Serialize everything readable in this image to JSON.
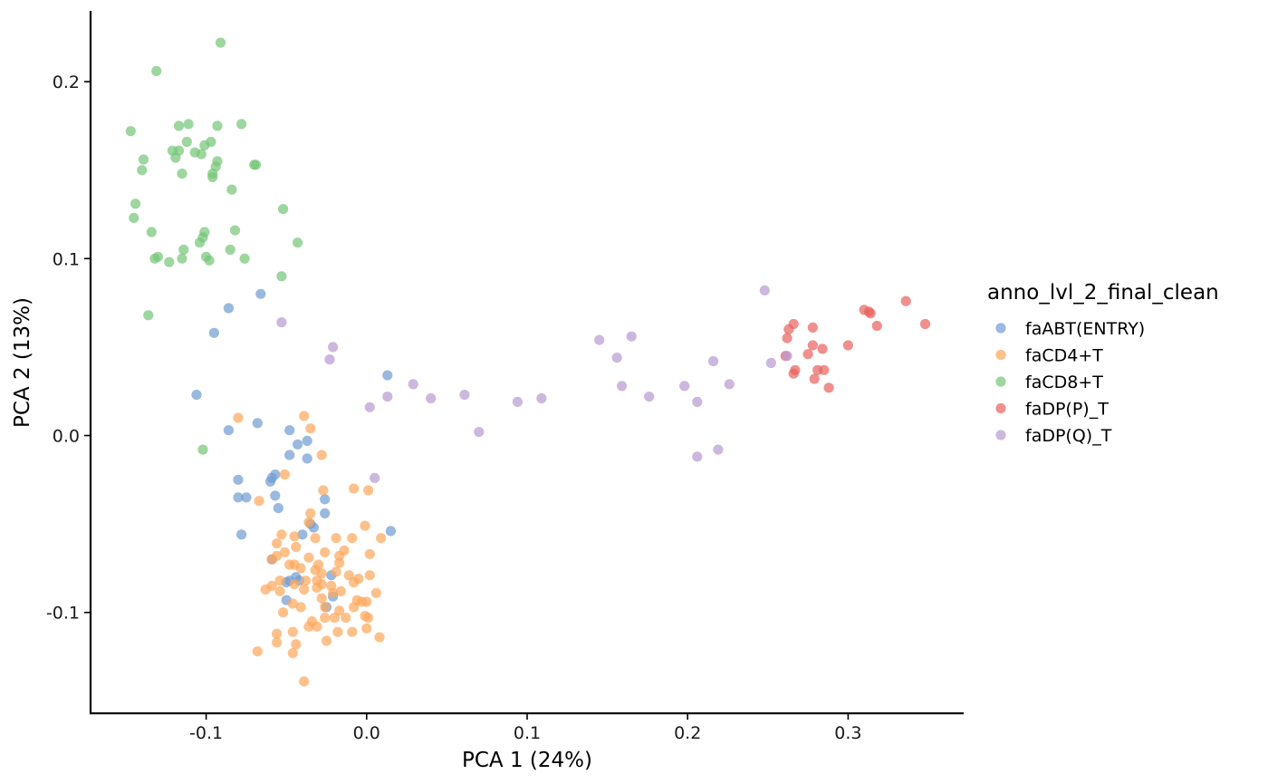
{
  "chart_data": {
    "type": "scatter",
    "xlabel": "PCA 1 (24%)",
    "ylabel": "PCA 2 (13%)",
    "xlim": [
      -0.172,
      0.372
    ],
    "ylim": [
      -0.157,
      0.24
    ],
    "x_ticks": [
      -0.1,
      0.0,
      0.1,
      0.2,
      0.3
    ],
    "x_tick_labels": [
      "-0.1",
      "0.0",
      "0.1",
      "0.2",
      "0.3"
    ],
    "y_ticks": [
      -0.1,
      0.0,
      0.1,
      0.2
    ],
    "y_tick_labels": [
      "-0.1",
      "0.0",
      "0.1",
      "0.2"
    ],
    "grid": false,
    "legend_title": "anno_lvl_2_final_clean",
    "legend_position": "right",
    "series": [
      {
        "name": "faABT(ENTRY)",
        "color": "#6F9BD1",
        "points": [
          [
            -0.066,
            0.08
          ],
          [
            -0.086,
            0.072
          ],
          [
            -0.095,
            0.058
          ],
          [
            -0.106,
            0.023
          ],
          [
            0.013,
            0.034
          ],
          [
            -0.068,
            0.007
          ],
          [
            -0.086,
            0.003
          ],
          [
            -0.048,
            0.003
          ],
          [
            -0.037,
            -0.003
          ],
          [
            -0.043,
            -0.005
          ],
          [
            -0.048,
            -0.011
          ],
          [
            -0.037,
            -0.013
          ],
          [
            -0.08,
            -0.025
          ],
          [
            -0.057,
            -0.022
          ],
          [
            -0.059,
            -0.024
          ],
          [
            -0.06,
            -0.026
          ],
          [
            -0.08,
            -0.035
          ],
          [
            -0.075,
            -0.035
          ],
          [
            -0.057,
            -0.034
          ],
          [
            -0.055,
            -0.041
          ],
          [
            -0.026,
            -0.036
          ],
          [
            -0.026,
            -0.044
          ],
          [
            -0.035,
            -0.05
          ],
          [
            -0.033,
            -0.052
          ],
          [
            -0.078,
            -0.056
          ],
          [
            -0.04,
            -0.056
          ],
          [
            0.015,
            -0.054
          ],
          [
            -0.059,
            -0.07
          ],
          [
            -0.022,
            -0.079
          ],
          [
            -0.048,
            -0.082
          ],
          [
            -0.044,
            -0.08
          ],
          [
            -0.042,
            -0.082
          ],
          [
            -0.05,
            -0.083
          ],
          [
            -0.021,
            -0.091
          ],
          [
            -0.05,
            -0.093
          ],
          [
            -0.025,
            -0.097
          ]
        ]
      },
      {
        "name": "faCD4+T",
        "color": "#FDA65A",
        "points": [
          [
            -0.08,
            0.01
          ],
          [
            -0.039,
            0.011
          ],
          [
            -0.035,
            0.004
          ],
          [
            -0.028,
            -0.011
          ],
          [
            -0.051,
            -0.022
          ],
          [
            -0.067,
            -0.037
          ],
          [
            -0.027,
            -0.031
          ],
          [
            -0.008,
            -0.03
          ],
          [
            0.001,
            -0.031
          ],
          [
            -0.035,
            -0.044
          ],
          [
            -0.036,
            -0.049
          ],
          [
            -0.001,
            -0.051
          ],
          [
            -0.053,
            -0.056
          ],
          [
            -0.045,
            -0.057
          ],
          [
            -0.019,
            -0.058
          ],
          [
            -0.009,
            -0.058
          ],
          [
            0.009,
            -0.058
          ],
          [
            -0.032,
            -0.058
          ],
          [
            -0.056,
            -0.061
          ],
          [
            -0.044,
            -0.063
          ],
          [
            -0.026,
            -0.066
          ],
          [
            -0.014,
            -0.065
          ],
          [
            -0.051,
            -0.066
          ],
          [
            -0.056,
            -0.068
          ],
          [
            -0.017,
            -0.068
          ],
          [
            0.002,
            -0.067
          ],
          [
            -0.036,
            -0.069
          ],
          [
            -0.017,
            -0.072
          ],
          [
            -0.045,
            -0.073
          ],
          [
            -0.048,
            -0.073
          ],
          [
            -0.059,
            -0.07
          ],
          [
            -0.03,
            -0.073
          ],
          [
            -0.041,
            -0.075
          ],
          [
            -0.032,
            -0.076
          ],
          [
            -0.028,
            -0.078
          ],
          [
            -0.019,
            -0.077
          ],
          [
            -0.011,
            -0.079
          ],
          [
            0.002,
            -0.079
          ],
          [
            -0.005,
            -0.081
          ],
          [
            -0.031,
            -0.082
          ],
          [
            -0.038,
            -0.082
          ],
          [
            -0.054,
            -0.082
          ],
          [
            -0.045,
            -0.084
          ],
          [
            -0.059,
            -0.085
          ],
          [
            -0.054,
            -0.088
          ],
          [
            -0.063,
            -0.087
          ],
          [
            -0.039,
            -0.087
          ],
          [
            -0.028,
            -0.084
          ],
          [
            -0.022,
            -0.085
          ],
          [
            -0.031,
            -0.086
          ],
          [
            -0.016,
            -0.088
          ],
          [
            -0.008,
            -0.083
          ],
          [
            0.006,
            -0.089
          ],
          [
            -0.028,
            -0.092
          ],
          [
            -0.046,
            -0.095
          ],
          [
            -0.021,
            -0.089
          ],
          [
            -0.003,
            -0.094
          ],
          [
            0.0,
            -0.094
          ],
          [
            -0.006,
            -0.093
          ],
          [
            -0.052,
            -0.1
          ],
          [
            -0.041,
            -0.097
          ],
          [
            -0.017,
            -0.099
          ],
          [
            -0.008,
            -0.097
          ],
          [
            -0.026,
            -0.097
          ],
          [
            -0.034,
            -0.105
          ],
          [
            -0.02,
            -0.103
          ],
          [
            -0.026,
            -0.103
          ],
          [
            -0.001,
            -0.102
          ],
          [
            -0.013,
            -0.103
          ],
          [
            0.001,
            -0.103
          ],
          [
            -0.036,
            -0.108
          ],
          [
            -0.031,
            -0.108
          ],
          [
            -0.056,
            -0.112
          ],
          [
            -0.046,
            -0.111
          ],
          [
            -0.009,
            -0.111
          ],
          [
            0.0,
            -0.109
          ],
          [
            -0.018,
            -0.111
          ],
          [
            0.008,
            -0.114
          ],
          [
            -0.056,
            -0.117
          ],
          [
            -0.025,
            -0.116
          ],
          [
            -0.044,
            -0.118
          ],
          [
            -0.046,
            -0.123
          ],
          [
            -0.068,
            -0.122
          ],
          [
            -0.039,
            -0.139
          ]
        ]
      },
      {
        "name": "faCD8+T",
        "color": "#74C476",
        "points": [
          [
            -0.091,
            0.222
          ],
          [
            -0.131,
            0.206
          ],
          [
            -0.111,
            0.176
          ],
          [
            -0.117,
            0.175
          ],
          [
            -0.093,
            0.175
          ],
          [
            -0.078,
            0.176
          ],
          [
            -0.147,
            0.172
          ],
          [
            -0.101,
            0.164
          ],
          [
            -0.112,
            0.166
          ],
          [
            -0.097,
            0.166
          ],
          [
            -0.121,
            0.161
          ],
          [
            -0.117,
            0.161
          ],
          [
            -0.107,
            0.16
          ],
          [
            -0.103,
            0.159
          ],
          [
            -0.119,
            0.157
          ],
          [
            -0.139,
            0.156
          ],
          [
            -0.093,
            0.155
          ],
          [
            -0.094,
            0.152
          ],
          [
            -0.07,
            0.153
          ],
          [
            -0.069,
            0.153
          ],
          [
            -0.14,
            0.15
          ],
          [
            -0.115,
            0.148
          ],
          [
            -0.096,
            0.148
          ],
          [
            -0.096,
            0.146
          ],
          [
            -0.084,
            0.139
          ],
          [
            -0.144,
            0.131
          ],
          [
            -0.052,
            0.128
          ],
          [
            -0.145,
            0.123
          ],
          [
            -0.082,
            0.116
          ],
          [
            -0.101,
            0.115
          ],
          [
            -0.134,
            0.115
          ],
          [
            -0.102,
            0.112
          ],
          [
            -0.104,
            0.109
          ],
          [
            -0.043,
            0.109
          ],
          [
            -0.114,
            0.105
          ],
          [
            -0.085,
            0.105
          ],
          [
            -0.1,
            0.101
          ],
          [
            -0.13,
            0.101
          ],
          [
            -0.076,
            0.1
          ],
          [
            -0.132,
            0.1
          ],
          [
            -0.115,
            0.1
          ],
          [
            -0.098,
            0.099
          ],
          [
            -0.123,
            0.098
          ],
          [
            -0.053,
            0.09
          ],
          [
            -0.136,
            0.068
          ],
          [
            -0.102,
            -0.008
          ]
        ]
      },
      {
        "name": "faDP(P)_T",
        "color": "#E8615E",
        "points": [
          [
            0.336,
            0.076
          ],
          [
            0.31,
            0.071
          ],
          [
            0.313,
            0.07
          ],
          [
            0.314,
            0.069
          ],
          [
            0.348,
            0.063
          ],
          [
            0.318,
            0.062
          ],
          [
            0.266,
            0.063
          ],
          [
            0.263,
            0.06
          ],
          [
            0.278,
            0.061
          ],
          [
            0.262,
            0.055
          ],
          [
            0.278,
            0.051
          ],
          [
            0.3,
            0.051
          ],
          [
            0.284,
            0.049
          ],
          [
            0.275,
            0.046
          ],
          [
            0.261,
            0.045
          ],
          [
            0.267,
            0.037
          ],
          [
            0.281,
            0.037
          ],
          [
            0.285,
            0.037
          ],
          [
            0.266,
            0.035
          ],
          [
            0.279,
            0.032
          ],
          [
            0.288,
            0.027
          ]
        ]
      },
      {
        "name": "faDP(Q)_T",
        "color": "#B69AD0",
        "points": [
          [
            0.248,
            0.082
          ],
          [
            -0.053,
            0.064
          ],
          [
            0.165,
            0.056
          ],
          [
            0.145,
            0.054
          ],
          [
            -0.021,
            0.05
          ],
          [
            0.156,
            0.044
          ],
          [
            0.262,
            0.045
          ],
          [
            -0.023,
            0.043
          ],
          [
            0.216,
            0.042
          ],
          [
            0.252,
            0.041
          ],
          [
            0.029,
            0.029
          ],
          [
            0.159,
            0.028
          ],
          [
            0.198,
            0.028
          ],
          [
            0.226,
            0.029
          ],
          [
            0.013,
            0.022
          ],
          [
            0.04,
            0.021
          ],
          [
            0.061,
            0.023
          ],
          [
            0.094,
            0.019
          ],
          [
            0.109,
            0.021
          ],
          [
            0.176,
            0.022
          ],
          [
            0.206,
            0.019
          ],
          [
            0.002,
            0.016
          ],
          [
            0.07,
            0.002
          ],
          [
            0.219,
            -0.008
          ],
          [
            0.206,
            -0.012
          ],
          [
            0.005,
            -0.024
          ]
        ]
      }
    ]
  }
}
